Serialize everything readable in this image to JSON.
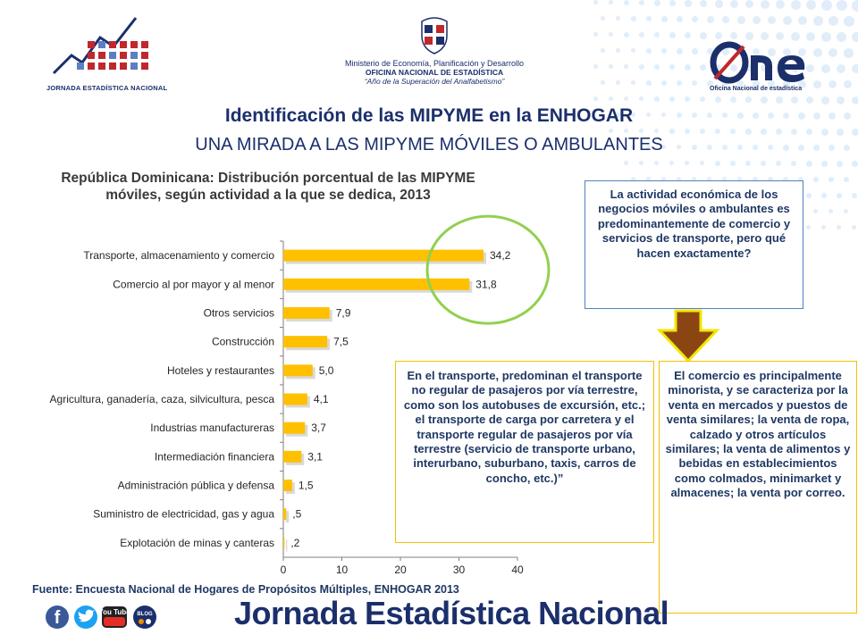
{
  "header": {
    "left_logo_caption": "JORNADA ESTADÍSTICA NACIONAL",
    "ministry_line1": "Ministerio de Economía, Planificación y Desarrollo",
    "ministry_line2": "OFICINA NACIONAL DE ESTADÍSTICA",
    "ministry_line3": "“Año de la Superación del Analfabetismo”",
    "one_logo_subtitle": "Oficina Nacional de estadística"
  },
  "slide": {
    "title": "Identificación de las MIPYME en la ENHOGAR",
    "subtitle": "UNA MIRADA A LAS MIPYME MÓVILES O AMBULANTES"
  },
  "chart_data": {
    "type": "bar",
    "orientation": "horizontal",
    "title": "República Dominicana: Distribución porcentual de las MIPYME móviles, según actividad a la que se dedica, 2013",
    "categories": [
      "Transporte, almacenamiento y comercio",
      "Comercio al por mayor y al menor",
      "Otros servicios",
      "Construcción",
      "Hoteles y restaurantes",
      "Agricultura, ganadería, caza, silvicultura, pesca",
      "Industrias manufactureras",
      "Intermediación  financiera",
      "Administración pública y defensa",
      "Suministro de electricidad, gas y agua",
      "Explotación de minas y canteras"
    ],
    "values": [
      34.2,
      31.8,
      7.9,
      7.5,
      5.0,
      4.1,
      3.7,
      3.1,
      1.5,
      0.5,
      0.2
    ],
    "value_labels": [
      "34,2",
      "31,8",
      "7,9",
      "7,5",
      "5,0",
      "4,1",
      "3,7",
      "3,1",
      "1,5",
      ",5",
      ",2"
    ],
    "xlim": [
      0,
      40
    ],
    "x_ticks": [
      "0",
      "10",
      "20",
      "30",
      "40"
    ],
    "bar_color": "#ffc000",
    "highlight_circle_color": "#92d050",
    "grid": false,
    "legend": "none"
  },
  "annotations": {
    "top_box": "La actividad económica de los negocios móviles o ambulantes es predominantemente de comercio y servicios de transporte, pero qué hacen exactamente?",
    "middle_box": "En el transporte, predominan el transporte no regular de pasajeros por vía terrestre, como son los autobuses de excursión, etc.; el transporte de carga por carretera y el transporte regular de pasajeros por vía terrestre (servicio de transporte urbano, interurbano, suburbano, taxis, carros de concho, etc.)”",
    "right_box": "El comercio es principalmente minorista, y se caracteriza por la venta en mercados y puestos de venta similares; la venta de ropa, calzado y otros artículos similares; la venta de alimentos y bebidas en establecimientos como colmados, minimarket y almacenes; la venta por correo."
  },
  "footer": {
    "source": "Fuente: Encuesta Nacional de Hogares de Propósitos Múltiples, ENHOGAR 2013",
    "social_icons": [
      "facebook-icon",
      "twitter-icon",
      "youtube-icon",
      "blog-icon"
    ],
    "youtube_label": "You Tube",
    "blog_label": "BLOG",
    "title": "Jornada Estadística Nacional"
  },
  "colors": {
    "navy": "#1b2f6b",
    "bar": "#ffc000",
    "arrow": "#8b4513",
    "arrow_outline": "#f2e600",
    "top_box_border": "#4f81bd",
    "yellow_box_border": "#f2c200"
  }
}
